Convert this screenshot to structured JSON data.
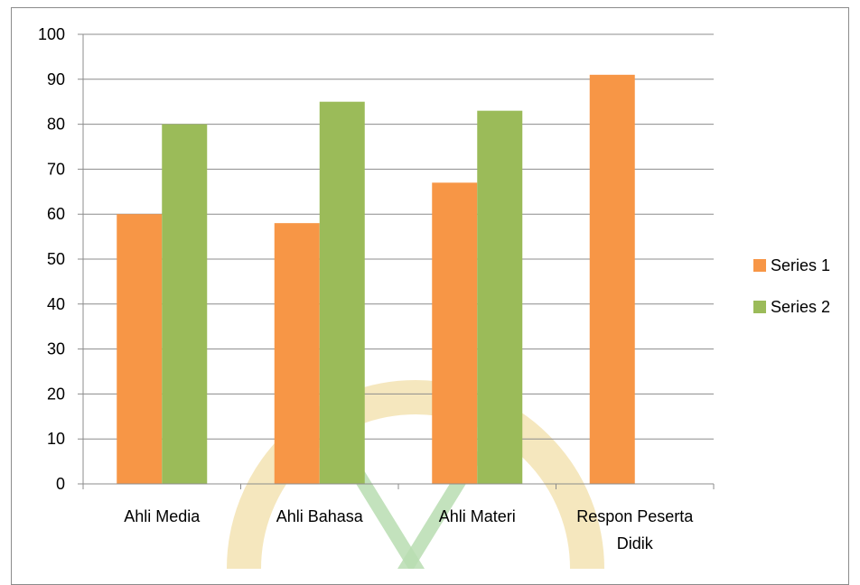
{
  "chart_data": {
    "type": "bar",
    "categories": [
      "Ahli Media",
      "Ahli Bahasa",
      "Ahli Materi",
      "Respon Peserta Didik"
    ],
    "category_lines": [
      [
        "Ahli Media"
      ],
      [
        "Ahli Bahasa"
      ],
      [
        "Ahli Materi"
      ],
      [
        "Respon Peserta",
        "Didik"
      ]
    ],
    "series": [
      {
        "name": "Series 1",
        "color": "#F79646",
        "values": [
          60,
          58,
          67,
          91
        ]
      },
      {
        "name": "Series 2",
        "color": "#9BBB59",
        "values": [
          80,
          85,
          83,
          null
        ]
      }
    ],
    "ylim": [
      0,
      100
    ],
    "yticks": [
      "0",
      "10",
      "20",
      "30",
      "40",
      "50",
      "60",
      "70",
      "80",
      "90",
      "100"
    ],
    "xlabel": "",
    "ylabel": "",
    "title": "",
    "grid": true,
    "legend_position": "right",
    "gridline_color": "#8C8C8C"
  }
}
